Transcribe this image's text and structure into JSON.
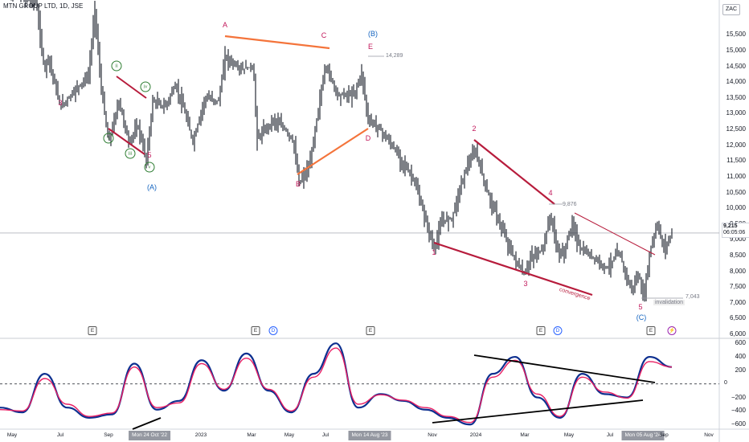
{
  "header": {
    "symbol": "MTN GROUP LTD",
    "interval": "1D",
    "exchange": "JSE",
    "currency": "ZAC"
  },
  "chart_data": [
    {
      "type": "line",
      "subtype": "ohlc-price",
      "title": "MTN GROUP LTD, 1D, JSE",
      "x_ticks": [
        "May",
        "Jul",
        "Sep",
        "Mon 24 Oct '22",
        "2023",
        "Mar",
        "May",
        "Jul",
        "Mon 14 Aug '23",
        "Nov",
        "2024",
        "Mar",
        "May",
        "Jul",
        "Mon 05 Aug '24",
        "Sep",
        "Nov"
      ],
      "y_ticks": [
        6000,
        6500,
        7000,
        7500,
        8000,
        8500,
        9000,
        9500,
        10000,
        10500,
        11000,
        11500,
        12000,
        12500,
        13000,
        13500,
        14000,
        14500,
        15000,
        15500
      ],
      "ylim": [
        5900,
        16400
      ],
      "last_price": "9,215",
      "countdown": "06:05:06",
      "x": [
        "2022-04",
        "2022-05",
        "2022-06",
        "2022-07",
        "2022-08",
        "2022-09",
        "2022-10",
        "2022-11",
        "2022-12",
        "2023-01",
        "2023-02",
        "2023-03",
        "2023-04",
        "2023-05",
        "2023-06",
        "2023-07",
        "2023-08",
        "2023-09",
        "2023-10",
        "2023-11",
        "2023-12",
        "2024-01",
        "2024-02",
        "2024-03",
        "2024-04",
        "2024-05",
        "2024-06",
        "2024-07",
        "2024-08",
        "2024-09"
      ],
      "close": [
        16500,
        14800,
        13900,
        13300,
        13900,
        12300,
        11900,
        13800,
        13500,
        12600,
        14600,
        14700,
        12500,
        11600,
        10900,
        14200,
        13300,
        12000,
        11200,
        9900,
        8950,
        10800,
        11500,
        9600,
        8150,
        9400,
        8400,
        8100,
        7300,
        9215
      ],
      "wave_labels": [
        {
          "text": "3",
          "color": "#c2185b"
        },
        {
          "text": "5",
          "color": "#c2185b"
        },
        {
          "text": "(A)",
          "color": "#1565c0"
        },
        {
          "text": "A",
          "color": "#c2185b"
        },
        {
          "text": "C",
          "color": "#c2185b"
        },
        {
          "text": "(B)",
          "color": "#1565c0"
        },
        {
          "text": "E",
          "color": "#c2185b"
        },
        {
          "text": "B",
          "color": "#c2185b"
        },
        {
          "text": "D",
          "color": "#c2185b"
        },
        {
          "text": "1",
          "color": "#c2185b"
        },
        {
          "text": "2",
          "color": "#c2185b"
        },
        {
          "text": "3",
          "color": "#c2185b"
        },
        {
          "text": "4",
          "color": "#c2185b"
        },
        {
          "text": "5",
          "color": "#c2185b"
        },
        {
          "text": "(C)",
          "color": "#1565c0"
        }
      ],
      "roman_labels": [
        "i",
        "ii",
        "iii",
        "iv",
        "v"
      ],
      "annotations": {
        "e_high": "14,289",
        "w4_level": "9,876",
        "invalidation_text": "invalidation",
        "invalidation_level": "7,043",
        "convergence_text": "convergence"
      },
      "events": [
        "E",
        "E",
        "D",
        "E",
        "E",
        "D",
        "E",
        "⚡"
      ]
    },
    {
      "type": "line",
      "subtype": "oscillator",
      "y_ticks": [
        600,
        400,
        200,
        0,
        -200,
        -400,
        -600
      ],
      "ylim": [
        -680,
        650
      ],
      "zero_label": "0",
      "series": [
        {
          "color": "#0d2f8f",
          "values": [
            -350,
            -420,
            150,
            -350,
            -500,
            -450,
            300,
            -380,
            -250,
            350,
            -100,
            450,
            -100,
            -420,
            150,
            600,
            -350,
            -150,
            -250,
            -380,
            -500,
            -600,
            150,
            400,
            -200,
            -500,
            150,
            -150,
            -200,
            400,
            250
          ]
        },
        {
          "color": "#e91e63",
          "values": [
            -380,
            -400,
            80,
            -300,
            -480,
            -430,
            250,
            -350,
            -280,
            300,
            -80,
            380,
            -80,
            -400,
            100,
            530,
            -300,
            -160,
            -240,
            -350,
            -480,
            -570,
            100,
            350,
            -150,
            -480,
            100,
            -120,
            -210,
            330,
            250
          ]
        }
      ]
    }
  ]
}
